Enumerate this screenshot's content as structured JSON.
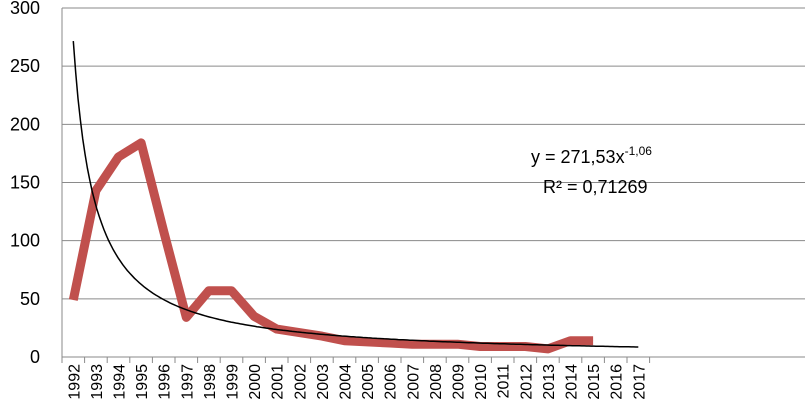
{
  "chart_data": {
    "type": "line",
    "title": "",
    "xlabel": "",
    "ylabel": "",
    "ylim": [
      0,
      300
    ],
    "yticks": [
      0,
      50,
      100,
      150,
      200,
      250,
      300
    ],
    "grid": true,
    "legend": "none",
    "categories": [
      "1992",
      "1993",
      "1994",
      "1995",
      "1996",
      "1997",
      "1998",
      "1999",
      "2000",
      "2001",
      "2002",
      "2003",
      "2004",
      "2005",
      "2006",
      "2007",
      "2008",
      "2009",
      "2010",
      "2011",
      "2012",
      "2013",
      "2014",
      "2015",
      "2016",
      "2017"
    ],
    "series": [
      {
        "color": "#c0504d",
        "values": [
          49,
          143,
          172,
          184,
          108,
          34,
          57,
          57,
          35,
          24,
          21,
          18,
          14,
          13,
          12,
          11,
          11,
          11,
          9,
          9,
          9,
          7,
          14,
          14,
          null,
          null
        ]
      }
    ],
    "trendline": {
      "type": "power",
      "a": 271.53,
      "b": -1.06,
      "color": "#000000",
      "equation_text": "y = 271,53x",
      "equation_exponent": "-1,06",
      "r2_text": "R² = 0,71269"
    }
  }
}
